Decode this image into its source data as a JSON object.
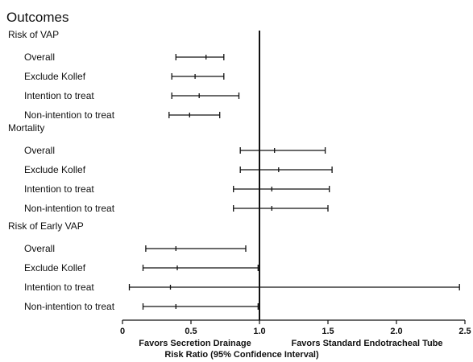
{
  "chart_data": {
    "type": "forest",
    "title": "Outcomes",
    "xlabel": "Risk Ratio (95% Confidence Interval)",
    "favors_left": "Favors Secretion Drainage",
    "favors_right": "Favors Standard Endotracheal Tube",
    "xlim": [
      0,
      2.5
    ],
    "xticks": [
      0,
      0.5,
      1.0,
      1.5,
      2.0,
      2.5
    ],
    "xtick_labels": [
      "0",
      "0.5",
      "1.0",
      "1.5",
      "2.0",
      "2.5"
    ],
    "reference_line": 1.0,
    "groups": [
      {
        "name": "Risk of VAP",
        "rows": [
          {
            "label": "Overall",
            "rr": 0.61,
            "lo": 0.39,
            "hi": 0.74
          },
          {
            "label": "Exclude Kollef",
            "rr": 0.53,
            "lo": 0.36,
            "hi": 0.74
          },
          {
            "label": "Intention to treat",
            "rr": 0.56,
            "lo": 0.36,
            "hi": 0.85
          },
          {
            "label": "Non-intention to treat",
            "rr": 0.49,
            "lo": 0.34,
            "hi": 0.71
          }
        ]
      },
      {
        "name": "Mortality",
        "rows": [
          {
            "label": "Overall",
            "rr": 1.11,
            "lo": 0.86,
            "hi": 1.48
          },
          {
            "label": "Exclude Kollef",
            "rr": 1.14,
            "lo": 0.86,
            "hi": 1.53
          },
          {
            "label": "Intention to treat",
            "rr": 1.09,
            "lo": 0.81,
            "hi": 1.51
          },
          {
            "label": "Non-intention to treat",
            "rr": 1.09,
            "lo": 0.81,
            "hi": 1.5
          }
        ]
      },
      {
        "name": "Risk of Early VAP",
        "rows": [
          {
            "label": "Overall",
            "rr": 0.39,
            "lo": 0.17,
            "hi": 0.9
          },
          {
            "label": "Exclude Kollef",
            "rr": 0.4,
            "lo": 0.15,
            "hi": 0.99
          },
          {
            "label": "Intention to treat",
            "rr": 0.35,
            "lo": 0.05,
            "hi": 2.46
          },
          {
            "label": "Non-intention to treat",
            "rr": 0.39,
            "lo": 0.15,
            "hi": 0.99
          }
        ]
      }
    ]
  }
}
